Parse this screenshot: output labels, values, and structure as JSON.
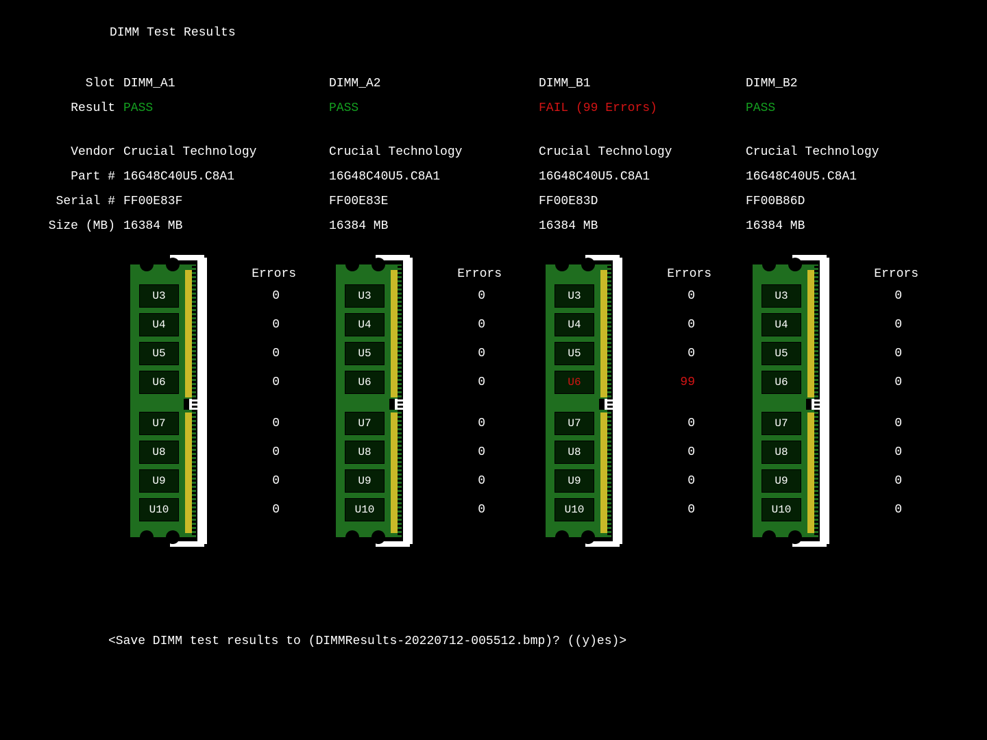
{
  "title": "DIMM Test Results",
  "labels": {
    "slot": "Slot",
    "result": "Result",
    "vendor": "Vendor",
    "part": "Part #",
    "serial": "Serial #",
    "size": "Size (MB)"
  },
  "errors_header": "Errors",
  "prompt": "<Save DIMM test results to (DIMMResults-20220712-005512.bmp)? ((y)es)>",
  "colors": {
    "background": "#000000",
    "text": "#ffffff",
    "pass": "#14a020",
    "fail": "#d41414",
    "pcb": "#1f6e1f",
    "pcb_dark": "#155015",
    "chip_bg": "#042004",
    "gold": "#c9b928",
    "white": "#ffffff"
  },
  "chips": [
    "U3",
    "U4",
    "U5",
    "U6",
    "U7",
    "U8",
    "U9",
    "U10"
  ],
  "dimms": [
    {
      "slot_name": "DIMM_A1",
      "result_text": "PASS",
      "result_status": "pass",
      "vendor": "Crucial Technology",
      "part": "16G48C40U5.C8A1",
      "serial": "FF00E83F",
      "size": "16384 MB",
      "errors": [
        0,
        0,
        0,
        0,
        0,
        0,
        0,
        0
      ],
      "error_chip_index": -1
    },
    {
      "slot_name": "DIMM_A2",
      "result_text": "PASS",
      "result_status": "pass",
      "vendor": "Crucial Technology",
      "part": "16G48C40U5.C8A1",
      "serial": "FF00E83E",
      "size": "16384 MB",
      "errors": [
        0,
        0,
        0,
        0,
        0,
        0,
        0,
        0
      ],
      "error_chip_index": -1
    },
    {
      "slot_name": "DIMM_B1",
      "result_text": "FAIL (99 Errors)",
      "result_status": "fail",
      "vendor": "Crucial Technology",
      "part": "16G48C40U5.C8A1",
      "serial": "FF00E83D",
      "size": "16384 MB",
      "errors": [
        0,
        0,
        0,
        99,
        0,
        0,
        0,
        0
      ],
      "error_chip_index": 3
    },
    {
      "slot_name": "DIMM_B2",
      "result_text": "PASS",
      "result_status": "pass",
      "vendor": "Crucial Technology",
      "part": "16G48C40U5.C8A1",
      "serial": "FF00B86D",
      "size": "16384 MB",
      "errors": [
        0,
        0,
        0,
        0,
        0,
        0,
        0,
        0
      ],
      "error_chip_index": -1
    }
  ]
}
